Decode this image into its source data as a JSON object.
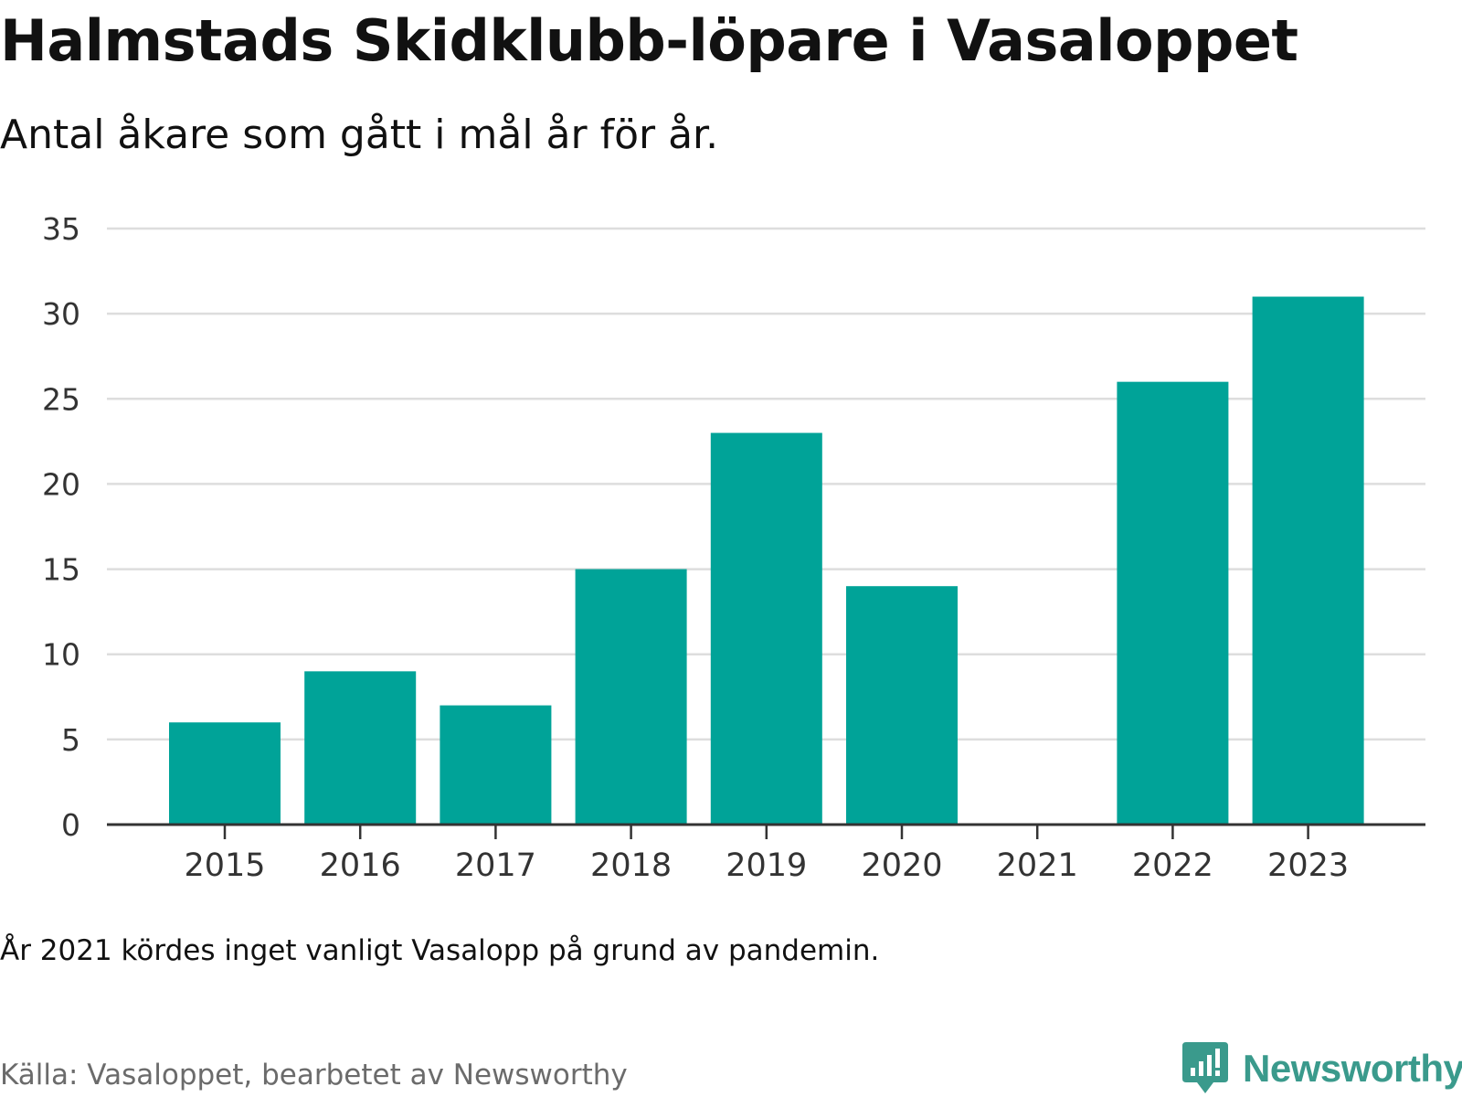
{
  "header": {
    "title": "Halmstads Skidklubb-löpare i Vasaloppet",
    "subtitle": "Antal åkare som gått i mål år för år."
  },
  "footer": {
    "note": "År 2021 kördes inget vanligt Vasalopp på grund av pandemin.",
    "source": "Källa: Vasaloppet, bearbetet av Newsworthy",
    "brand": "Newsworthy",
    "brand_icon": "newsworthy-logo-icon"
  },
  "colors": {
    "bar": "#00A398",
    "grid": "#dddddd",
    "axis": "#333333",
    "brand": "#3a9a8c"
  },
  "chart_data": {
    "type": "bar",
    "title": "Halmstads Skidklubb-löpare i Vasaloppet",
    "subtitle": "Antal åkare som gått i mål år för år.",
    "categories": [
      "2015",
      "2016",
      "2017",
      "2018",
      "2019",
      "2020",
      "2021",
      "2022",
      "2023"
    ],
    "values": [
      6,
      9,
      7,
      15,
      23,
      14,
      0,
      26,
      31
    ],
    "ylim": [
      0,
      35
    ],
    "yticks": [
      0,
      5,
      10,
      15,
      20,
      25,
      30,
      35
    ],
    "grid": true,
    "xlabel": "",
    "ylabel": ""
  }
}
